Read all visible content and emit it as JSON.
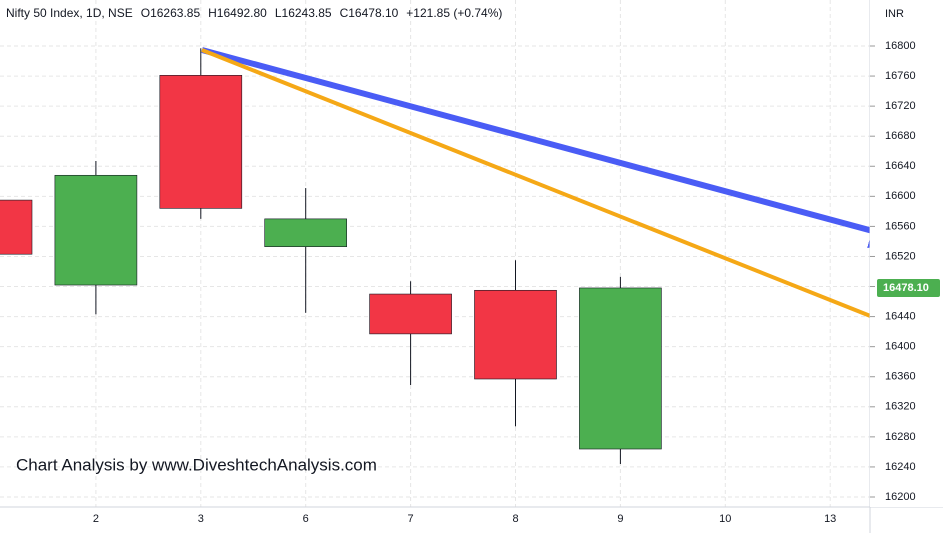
{
  "chart_data": {
    "type": "candlestick",
    "title": "Nifty 50 Index, 1D, NSE",
    "ohlc_labels": [
      "O16263.85",
      "H16492.80",
      "L16243.85",
      "C16478.10",
      "+121.85 (+0.74%)"
    ],
    "y_axis_label": "INR",
    "annotation": "Chart Analysis by www.DiveshtechAnalysis.com",
    "categories": [
      null,
      "2",
      "3",
      "6",
      "7",
      "8",
      "9",
      "10",
      "13"
    ],
    "open": [
      16595,
      16482,
      16761,
      16533,
      16470,
      16475,
      16263.85,
      null,
      null
    ],
    "high": [
      null,
      16647,
      16797,
      16611,
      16487,
      16515,
      16492.8,
      null,
      null
    ],
    "low": [
      null,
      16443,
      16570,
      16445,
      16349,
      16294,
      16243.85,
      null,
      null
    ],
    "close": [
      16523,
      16628,
      16584,
      16570,
      16417,
      16357,
      16478.1,
      null,
      null
    ],
    "up_color": "#4caf50",
    "down_color": "#f23645",
    "last_price": {
      "value": 16478.1,
      "label": "16478.10"
    },
    "ylim": [
      16180,
      16830
    ],
    "yticks": [
      16200,
      16240,
      16280,
      16320,
      16360,
      16400,
      16440,
      16480,
      16520,
      16560,
      16600,
      16640,
      16680,
      16720,
      16760,
      16800
    ],
    "grid": true
  }
}
